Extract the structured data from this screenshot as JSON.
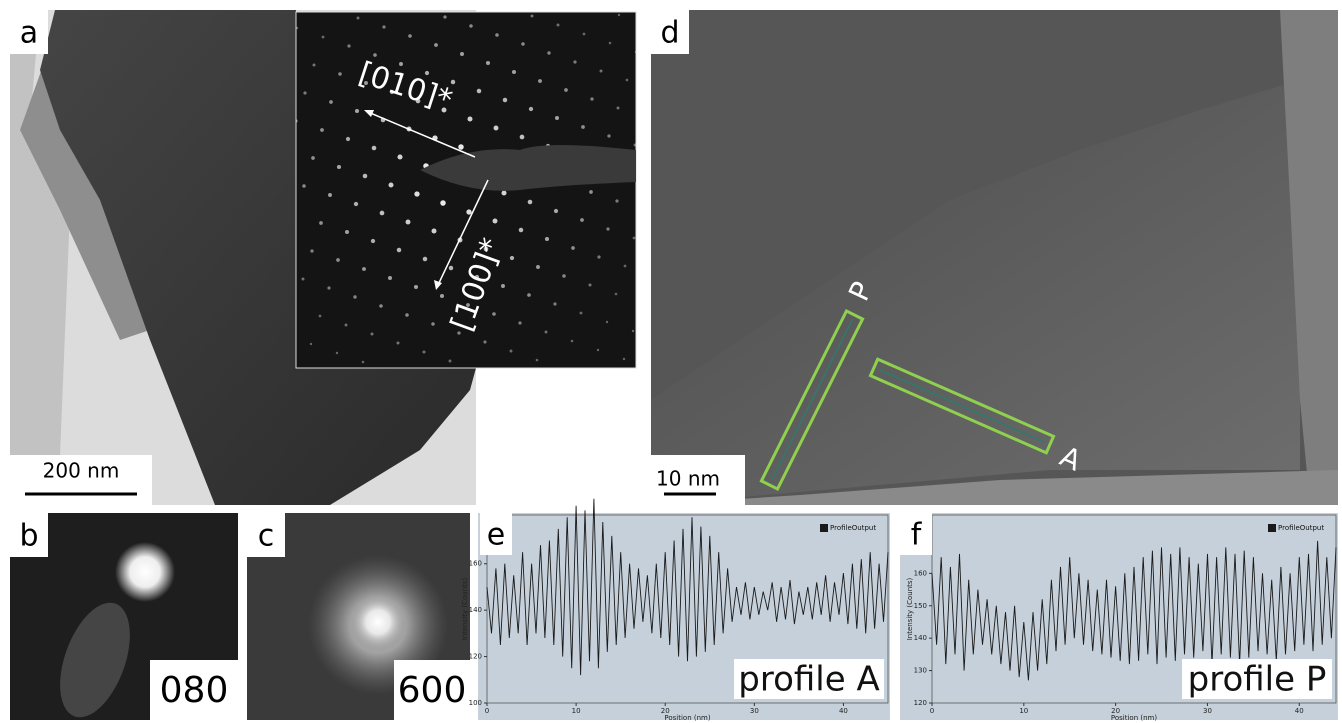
{
  "panels": {
    "a": {
      "letter": "a",
      "scale_bar": "200 nm",
      "inset_labels": [
        "[010]*",
        "[100]*"
      ]
    },
    "b": {
      "letter": "b",
      "reflection": "080"
    },
    "c": {
      "letter": "c",
      "reflection": "600"
    },
    "d": {
      "letter": "d",
      "scale_bar": "10 nm",
      "profile_labels": [
        "P",
        "A"
      ]
    },
    "e": {
      "letter": "e"
    },
    "f": {
      "letter": "f"
    }
  },
  "chart_data": [
    {
      "type": "line",
      "annotation": "profile A",
      "x_label": "Position (nm)",
      "y_label": "Intensity (Counts)",
      "xlim": [
        0,
        45
      ],
      "xticks": [
        0,
        10,
        20,
        30,
        40
      ],
      "ylim": [
        100,
        181
      ],
      "yticks": [
        100,
        120,
        140,
        160
      ],
      "x": [
        0,
        0.5,
        1,
        1.5,
        2,
        2.5,
        3,
        3.5,
        4,
        4.5,
        5,
        5.5,
        6,
        6.5,
        7,
        7.5,
        8,
        8.5,
        9,
        9.5,
        10,
        10.5,
        11,
        11.5,
        12,
        12.5,
        13,
        13.5,
        14,
        14.5,
        15,
        15.5,
        16,
        16.5,
        17,
        17.5,
        18,
        18.5,
        19,
        19.5,
        20,
        20.5,
        21,
        21.5,
        22,
        22.5,
        23,
        23.5,
        24,
        24.5,
        25,
        25.5,
        26,
        26.5,
        27,
        27.5,
        28,
        28.5,
        29,
        29.5,
        30,
        30.5,
        31,
        31.5,
        32,
        32.5,
        33,
        33.5,
        34,
        34.5,
        35,
        35.5,
        36,
        36.5,
        37,
        37.5,
        38,
        38.5,
        39,
        39.5,
        40,
        40.5,
        41,
        41.5,
        42,
        42.5,
        43,
        43.5,
        44,
        44.5,
        45
      ],
      "series": [
        {
          "name": "ProfileOutput",
          "color": "#1a1a1a",
          "values": [
            150,
            130,
            158,
            125,
            160,
            128,
            155,
            130,
            165,
            125,
            160,
            130,
            168,
            128,
            170,
            125,
            175,
            120,
            180,
            115,
            185,
            112,
            183,
            118,
            188,
            115,
            178,
            122,
            172,
            125,
            165,
            128,
            160,
            132,
            158,
            135,
            155,
            130,
            160,
            128,
            165,
            125,
            170,
            120,
            175,
            118,
            180,
            120,
            176,
            122,
            172,
            125,
            165,
            130,
            158,
            135,
            150,
            138,
            152,
            136,
            150,
            138,
            148,
            140,
            152,
            135,
            150,
            136,
            153,
            134,
            148,
            138,
            150,
            136,
            152,
            138,
            155,
            135,
            152,
            138,
            156,
            134,
            160,
            132,
            162,
            130,
            165,
            132,
            160,
            135,
            165
          ]
        }
      ]
    },
    {
      "type": "line",
      "annotation": "profile P",
      "x_label": "Position (nm)",
      "y_label": "Intensity (Counts)",
      "xlim": [
        0,
        44
      ],
      "xticks": [
        0,
        10,
        20,
        30,
        40
      ],
      "ylim": [
        120,
        178
      ],
      "yticks": [
        120,
        130,
        140,
        150,
        160
      ],
      "x": [
        0,
        0.5,
        1,
        1.5,
        2,
        2.5,
        3,
        3.5,
        4,
        4.5,
        5,
        5.5,
        6,
        6.5,
        7,
        7.5,
        8,
        8.5,
        9,
        9.5,
        10,
        10.5,
        11,
        11.5,
        12,
        12.5,
        13,
        13.5,
        14,
        14.5,
        15,
        15.5,
        16,
        16.5,
        17,
        17.5,
        18,
        18.5,
        19,
        19.5,
        20,
        20.5,
        21,
        21.5,
        22,
        22.5,
        23,
        23.5,
        24,
        24.5,
        25,
        25.5,
        26,
        26.5,
        27,
        27.5,
        28,
        28.5,
        29,
        29.5,
        30,
        30.5,
        31,
        31.5,
        32,
        32.5,
        33,
        33.5,
        34,
        34.5,
        35,
        35.5,
        36,
        36.5,
        37,
        37.5,
        38,
        38.5,
        39,
        39.5,
        40,
        40.5,
        41,
        41.5,
        42,
        42.5,
        43,
        43.5,
        44
      ],
      "series": [
        {
          "name": "ProfileOutput",
          "color": "#1a1a1a",
          "values": [
            160,
            138,
            165,
            132,
            162,
            135,
            166,
            130,
            158,
            135,
            155,
            138,
            152,
            135,
            150,
            132,
            148,
            130,
            150,
            128,
            145,
            127,
            148,
            130,
            152,
            132,
            158,
            136,
            162,
            138,
            165,
            140,
            160,
            138,
            158,
            136,
            155,
            135,
            158,
            134,
            156,
            133,
            160,
            132,
            162,
            133,
            165,
            135,
            167,
            132,
            168,
            134,
            166,
            133,
            168,
            135,
            165,
            134,
            163,
            136,
            166,
            132,
            165,
            135,
            168,
            134,
            166,
            132,
            167,
            134,
            165,
            136,
            160,
            135,
            158,
            133,
            162,
            135,
            160,
            136,
            165,
            138,
            166,
            136,
            170,
            138,
            165,
            140,
            168
          ]
        }
      ]
    }
  ]
}
